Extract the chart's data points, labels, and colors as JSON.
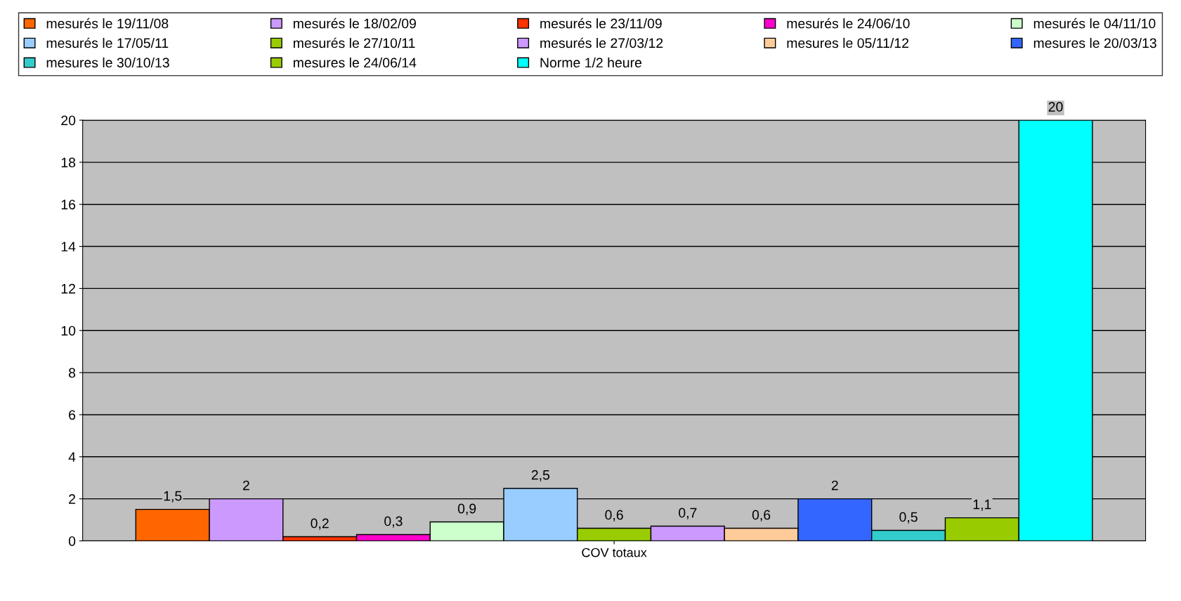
{
  "chart_data": {
    "type": "bar",
    "categories": [
      "COV totaux"
    ],
    "series": [
      {
        "name": "mesurés le 19/11/08",
        "color": "#ff6600",
        "values": [
          1.5
        ],
        "value_labels": [
          "1,5"
        ]
      },
      {
        "name": "mesurés le 18/02/09",
        "color": "#cc99ff",
        "values": [
          2
        ],
        "value_labels": [
          "2"
        ]
      },
      {
        "name": "mesurés le 23/11/09",
        "color": "#ff3300",
        "values": [
          0.2
        ],
        "value_labels": [
          "0,2"
        ]
      },
      {
        "name": "mesurés le 24/06/10",
        "color": "#ff00cc",
        "values": [
          0.3
        ],
        "value_labels": [
          "0,3"
        ]
      },
      {
        "name": "mesurés le 04/11/10",
        "color": "#ccffcc",
        "values": [
          0.9
        ],
        "value_labels": [
          "0,9"
        ]
      },
      {
        "name": "mesurés le 17/05/11",
        "color": "#99ccff",
        "values": [
          2.5
        ],
        "value_labels": [
          "2,5"
        ]
      },
      {
        "name": "mesurés le 27/10/11",
        "color": "#99cc00",
        "values": [
          0.6
        ],
        "value_labels": [
          "0,6"
        ]
      },
      {
        "name": "mesurés le 27/03/12",
        "color": "#cc99ff",
        "values": [
          0.7
        ],
        "value_labels": [
          "0,7"
        ]
      },
      {
        "name": "mesures le 05/11/12",
        "color": "#ffcc99",
        "values": [
          0.6
        ],
        "value_labels": [
          "0,6"
        ]
      },
      {
        "name": "mesures le 20/03/13",
        "color": "#3366ff",
        "values": [
          2
        ],
        "value_labels": [
          "2"
        ]
      },
      {
        "name": "mesures le 30/10/13",
        "color": "#33cccc",
        "values": [
          0.5
        ],
        "value_labels": [
          "0,5"
        ]
      },
      {
        "name": "mesures le 24/06/14",
        "color": "#99cc00",
        "values": [
          1.1
        ],
        "value_labels": [
          "1,1"
        ]
      },
      {
        "name": "Norme 1/2 heure",
        "color": "#00ffff",
        "values": [
          20
        ],
        "value_labels": [
          "20"
        ]
      }
    ],
    "ylim": [
      0,
      20
    ],
    "yticks": [
      0,
      2,
      4,
      6,
      8,
      10,
      12,
      14,
      16,
      18,
      20
    ],
    "grid": "y",
    "legend": "top"
  }
}
